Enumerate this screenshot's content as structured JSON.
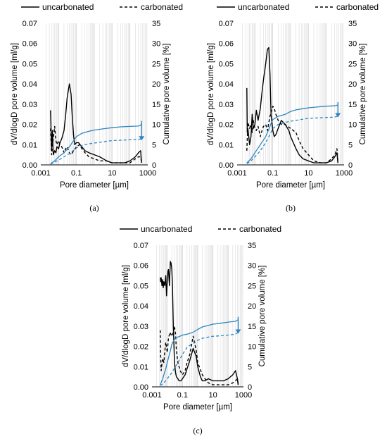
{
  "colors": {
    "black": "#000000",
    "blue": "#2e86c1",
    "grid": "#d4d4d4"
  },
  "chart_data": [
    {
      "panel_label": "(a)",
      "type": "line",
      "legend": {
        "placement": "top",
        "entries": [
          "uncarbonated",
          "carbonated"
        ]
      },
      "xlabel": "Pore diameter [µm]",
      "ylabel": "dV/dlogD pore volume [ml/g]",
      "y2label": "Cumulative pore volume [%]",
      "x_scale": "log",
      "xlim": [
        0.001,
        1000
      ],
      "x_ticks": [
        "0.001",
        "0.1",
        "10",
        "1000"
      ],
      "ylim": [
        0,
        0.07
      ],
      "y_ticks": [
        "0.00",
        "0.01",
        "0.02",
        "0.03",
        "0.04",
        "0.05",
        "0.06",
        "0.07"
      ],
      "y2lim": [
        0,
        35
      ],
      "y2_ticks": [
        "0",
        "5",
        "10",
        "15",
        "20",
        "25",
        "30",
        "35"
      ],
      "grid": "vertical minor log lines",
      "series": [
        {
          "name": "uncarbonated",
          "axis": "left",
          "color": "black",
          "dash": "solid",
          "x": [
            0.0035,
            0.004,
            0.0045,
            0.005,
            0.006,
            0.007,
            0.008,
            0.01,
            0.012,
            0.015,
            0.02,
            0.025,
            0.03,
            0.04,
            0.05,
            0.06,
            0.07,
            0.08,
            0.1,
            0.13,
            0.16,
            0.2,
            0.3,
            0.5,
            1,
            2,
            5,
            10,
            20,
            50,
            100,
            200,
            300,
            400,
            450
          ],
          "y": [
            0.027,
            0.008,
            0.017,
            0.005,
            0.007,
            0.006,
            0.009,
            0.008,
            0.011,
            0.013,
            0.017,
            0.025,
            0.033,
            0.04,
            0.035,
            0.022,
            0.014,
            0.01,
            0.011,
            0.011,
            0.01,
            0.009,
            0.007,
            0.006,
            0.005,
            0.004,
            0.002,
            0.001,
            0.001,
            0.001,
            0.002,
            0.004,
            0.006,
            0.007,
            0.001
          ]
        },
        {
          "name": "carbonated",
          "axis": "left",
          "color": "black",
          "dash": "dashed",
          "x": [
            0.0035,
            0.004,
            0.005,
            0.006,
            0.007,
            0.008,
            0.01,
            0.012,
            0.015,
            0.02,
            0.025,
            0.03,
            0.04,
            0.05,
            0.07,
            0.1,
            0.15,
            0.2,
            0.3,
            0.5,
            1,
            2,
            5,
            10,
            20,
            50,
            100,
            200,
            300,
            400,
            450
          ],
          "y": [
            0.018,
            0.005,
            0.013,
            0.019,
            0.012,
            0.01,
            0.012,
            0.01,
            0.009,
            0.006,
            0.008,
            0.009,
            0.006,
            0.005,
            0.007,
            0.009,
            0.01,
            0.008,
            0.006,
            0.004,
            0.003,
            0.002,
            0.002,
            0.001,
            0.001,
            0.001,
            0.001,
            0.003,
            0.004,
            0.004,
            0.001
          ]
        },
        {
          "name": "uncarbonated",
          "axis": "right",
          "color": "blue",
          "dash": "solid",
          "x": [
            0.0035,
            0.006,
            0.01,
            0.02,
            0.04,
            0.07,
            0.1,
            0.2,
            0.5,
            1,
            3,
            10,
            30,
            100,
            300,
            400,
            450
          ],
          "y": [
            0.3,
            1,
            2,
            3,
            4.5,
            6,
            7,
            7.8,
            8.3,
            8.6,
            8.9,
            9.2,
            9.4,
            9.5,
            9.6,
            9.8,
            10.2
          ]
        },
        {
          "name": "carbonated",
          "axis": "right",
          "color": "blue",
          "dash": "dashed",
          "x": [
            0.0035,
            0.006,
            0.01,
            0.02,
            0.04,
            0.07,
            0.1,
            0.2,
            0.5,
            1,
            3,
            10,
            30,
            100,
            300,
            400
          ],
          "y": [
            0.2,
            0.7,
            1.2,
            2,
            2.8,
            3.6,
            4.2,
            4.8,
            5.2,
            5.4,
            5.7,
            6,
            6.1,
            6.2,
            6.3,
            6.4
          ]
        }
      ]
    },
    {
      "panel_label": "(b)",
      "type": "line",
      "legend": {
        "placement": "top",
        "entries": [
          "uncarbonated",
          "carbonated"
        ]
      },
      "xlabel": "Pore diameter [µm]",
      "ylabel": "dV/dlogD pore volume [ml/g]",
      "y2label": "Cumulative pore volume [%]",
      "x_scale": "log",
      "xlim": [
        0.001,
        1000
      ],
      "x_ticks": [
        "0.001",
        "0.1",
        "10",
        "1000"
      ],
      "ylim": [
        0,
        0.07
      ],
      "y_ticks": [
        "0.00",
        "0.01",
        "0.02",
        "0.03",
        "0.04",
        "0.05",
        "0.06",
        "0.07"
      ],
      "y2lim": [
        0,
        35
      ],
      "y2_ticks": [
        "0",
        "5",
        "10",
        "15",
        "20",
        "25",
        "30",
        "35"
      ],
      "grid": "vertical minor log lines",
      "series": [
        {
          "name": "uncarbonated",
          "axis": "left",
          "color": "black",
          "dash": "solid",
          "x": [
            0.0035,
            0.0037,
            0.004,
            0.005,
            0.006,
            0.007,
            0.008,
            0.01,
            0.012,
            0.015,
            0.02,
            0.025,
            0.03,
            0.04,
            0.05,
            0.06,
            0.07,
            0.08,
            0.1,
            0.12,
            0.15,
            0.2,
            0.3,
            0.5,
            0.8,
            1,
            2,
            3,
            5,
            10,
            20,
            50,
            100,
            200,
            300,
            400,
            450
          ],
          "y": [
            0.038,
            0.016,
            0.018,
            0.01,
            0.014,
            0.025,
            0.018,
            0.02,
            0.027,
            0.022,
            0.028,
            0.036,
            0.042,
            0.05,
            0.057,
            0.058,
            0.045,
            0.025,
            0.017,
            0.014,
            0.015,
            0.018,
            0.022,
            0.02,
            0.017,
            0.014,
            0.008,
            0.005,
            0.003,
            0.002,
            0.001,
            0.001,
            0.001,
            0.002,
            0.004,
            0.006,
            0.001
          ]
        },
        {
          "name": "carbonated",
          "axis": "left",
          "color": "black",
          "dash": "dashed",
          "x": [
            0.0035,
            0.004,
            0.005,
            0.006,
            0.007,
            0.008,
            0.01,
            0.012,
            0.015,
            0.02,
            0.025,
            0.03,
            0.04,
            0.05,
            0.07,
            0.1,
            0.12,
            0.15,
            0.2,
            0.3,
            0.5,
            1,
            2,
            3,
            5,
            10,
            20,
            50,
            100,
            200,
            300,
            400,
            450
          ],
          "y": [
            0.007,
            0.021,
            0.018,
            0.02,
            0.016,
            0.022,
            0.018,
            0.017,
            0.019,
            0.014,
            0.017,
            0.019,
            0.02,
            0.017,
            0.024,
            0.029,
            0.028,
            0.025,
            0.022,
            0.02,
            0.02,
            0.018,
            0.016,
            0.012,
            0.008,
            0.005,
            0.002,
            0.001,
            0.001,
            0.003,
            0.005,
            0.008,
            0.001
          ]
        },
        {
          "name": "uncarbonated",
          "axis": "right",
          "color": "blue",
          "dash": "solid",
          "x": [
            0.0035,
            0.006,
            0.01,
            0.02,
            0.04,
            0.06,
            0.08,
            0.1,
            0.2,
            0.5,
            1,
            2,
            5,
            10,
            30,
            100,
            300,
            450
          ],
          "y": [
            0.5,
            1.5,
            3,
            5,
            7,
            8.8,
            10.2,
            11.2,
            12,
            12.5,
            13.2,
            13.6,
            13.9,
            14.1,
            14.3,
            14.5,
            14.6,
            14.8
          ]
        },
        {
          "name": "carbonated",
          "axis": "right",
          "color": "blue",
          "dash": "dashed",
          "x": [
            0.0035,
            0.006,
            0.01,
            0.02,
            0.04,
            0.07,
            0.1,
            0.2,
            0.5,
            1,
            2,
            5,
            10,
            30,
            100,
            300,
            450
          ],
          "y": [
            0.3,
            1,
            2,
            3.5,
            5.5,
            7.5,
            9,
            10,
            10.5,
            10.8,
            11,
            11.3,
            11.5,
            11.6,
            11.7,
            11.8,
            12.1
          ]
        }
      ]
    },
    {
      "panel_label": "(c)",
      "type": "line",
      "legend": {
        "placement": "top",
        "entries": [
          "uncarbonated",
          "carbonated"
        ]
      },
      "xlabel": "Pore diameter [µm]",
      "ylabel": "dV/dlogD pore volume [ml/g]",
      "y2label": "Cumulative pore volume [%]",
      "x_scale": "log",
      "xlim": [
        0.001,
        1000
      ],
      "x_ticks": [
        "0.001",
        "0.1",
        "10",
        "1000"
      ],
      "ylim": [
        0,
        0.07
      ],
      "y_ticks": [
        "0.00",
        "0.01",
        "0.02",
        "0.03",
        "0.04",
        "0.05",
        "0.06",
        "0.07"
      ],
      "y2lim": [
        0,
        35
      ],
      "y2_ticks": [
        "0",
        "5",
        "10",
        "15",
        "20",
        "25",
        "30",
        "35"
      ],
      "grid": "vertical minor log lines",
      "series": [
        {
          "name": "uncarbonated",
          "axis": "left",
          "color": "black",
          "dash": "solid",
          "x": [
            0.0035,
            0.0037,
            0.004,
            0.0045,
            0.005,
            0.0055,
            0.006,
            0.007,
            0.008,
            0.009,
            0.01,
            0.011,
            0.012,
            0.014,
            0.016,
            0.018,
            0.02,
            0.022,
            0.025,
            0.03,
            0.035,
            0.04,
            0.05,
            0.06,
            0.08,
            0.1,
            0.15,
            0.2,
            0.3,
            0.5,
            0.8,
            1,
            1.5,
            2,
            3,
            5,
            10,
            20,
            50,
            100,
            200,
            300,
            400,
            450
          ],
          "y": [
            0.054,
            0.052,
            0.054,
            0.05,
            0.053,
            0.049,
            0.052,
            0.05,
            0.055,
            0.045,
            0.052,
            0.057,
            0.058,
            0.05,
            0.062,
            0.061,
            0.058,
            0.05,
            0.03,
            0.012,
            0.007,
            0.005,
            0.004,
            0.003,
            0.003,
            0.004,
            0.006,
            0.009,
            0.013,
            0.019,
            0.015,
            0.01,
            0.005,
            0.003,
            0.003,
            0.004,
            0.003,
            0.003,
            0.003,
            0.004,
            0.006,
            0.008,
            0.004,
            0.001
          ]
        },
        {
          "name": "carbonated",
          "axis": "left",
          "color": "black",
          "dash": "dashed",
          "x": [
            0.0035,
            0.0037,
            0.004,
            0.005,
            0.006,
            0.007,
            0.008,
            0.01,
            0.012,
            0.015,
            0.02,
            0.025,
            0.03,
            0.035,
            0.04,
            0.05,
            0.07,
            0.1,
            0.15,
            0.2,
            0.3,
            0.5,
            0.8,
            1,
            2,
            3,
            5,
            10,
            20,
            50,
            100,
            200,
            300,
            400,
            450
          ],
          "y": [
            0.028,
            0.016,
            0.008,
            0.014,
            0.012,
            0.018,
            0.022,
            0.017,
            0.024,
            0.027,
            0.025,
            0.027,
            0.03,
            0.026,
            0.018,
            0.012,
            0.008,
            0.006,
            0.008,
            0.012,
            0.016,
            0.025,
            0.018,
            0.012,
            0.006,
            0.004,
            0.002,
            0.001,
            0.001,
            0.001,
            0.001,
            0.002,
            0.003,
            0.004,
            0.001
          ]
        },
        {
          "name": "uncarbonated",
          "axis": "right",
          "color": "blue",
          "dash": "solid",
          "x": [
            0.0035,
            0.005,
            0.008,
            0.01,
            0.015,
            0.02,
            0.03,
            0.04,
            0.06,
            0.1,
            0.2,
            0.5,
            1,
            2,
            5,
            10,
            30,
            100,
            300,
            450
          ],
          "y": [
            0.5,
            2,
            4.5,
            6,
            8.5,
            10.5,
            11.8,
            12.2,
            12.4,
            12.8,
            13,
            13.5,
            14.2,
            14.8,
            15.2,
            15.5,
            15.7,
            16,
            16.2,
            16.6
          ]
        },
        {
          "name": "carbonated",
          "axis": "right",
          "color": "blue",
          "dash": "dashed",
          "x": [
            0.0035,
            0.006,
            0.01,
            0.02,
            0.05,
            0.1,
            0.2,
            0.5,
            1,
            2,
            5,
            10,
            30,
            100,
            300,
            450
          ],
          "y": [
            0.3,
            1,
            2,
            3.5,
            6,
            8,
            9.8,
            10.8,
            11.5,
            12,
            12.3,
            12.5,
            12.6,
            12.8,
            13,
            13.5
          ]
        }
      ]
    }
  ]
}
